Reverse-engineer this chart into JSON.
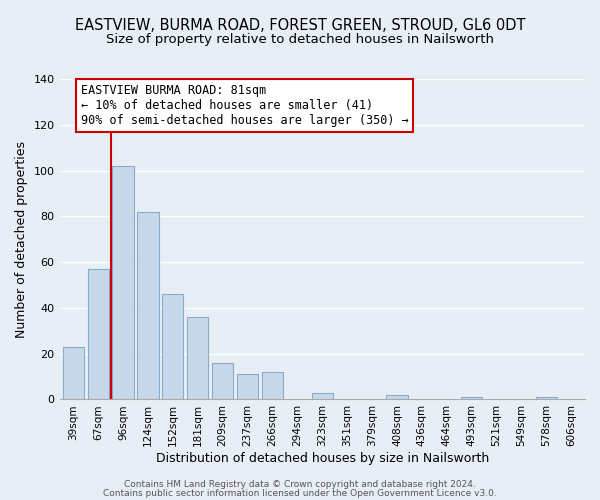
{
  "title": "EASTVIEW, BURMA ROAD, FOREST GREEN, STROUD, GL6 0DT",
  "subtitle": "Size of property relative to detached houses in Nailsworth",
  "xlabel": "Distribution of detached houses by size in Nailsworth",
  "ylabel": "Number of detached properties",
  "bar_labels": [
    "39sqm",
    "67sqm",
    "96sqm",
    "124sqm",
    "152sqm",
    "181sqm",
    "209sqm",
    "237sqm",
    "266sqm",
    "294sqm",
    "323sqm",
    "351sqm",
    "379sqm",
    "408sqm",
    "436sqm",
    "464sqm",
    "493sqm",
    "521sqm",
    "549sqm",
    "578sqm",
    "606sqm"
  ],
  "bar_values": [
    23,
    57,
    102,
    82,
    46,
    36,
    16,
    11,
    12,
    0,
    3,
    0,
    0,
    2,
    0,
    0,
    1,
    0,
    0,
    1,
    0
  ],
  "bar_color": "#c8d8eb",
  "bar_edge_color": "#8aaac8",
  "vline_x": 1.5,
  "vline_color": "#cc0000",
  "ylim": [
    0,
    140
  ],
  "yticks": [
    0,
    20,
    40,
    60,
    80,
    100,
    120,
    140
  ],
  "annotation_title": "EASTVIEW BURMA ROAD: 81sqm",
  "annotation_line1": "← 10% of detached houses are smaller (41)",
  "annotation_line2": "90% of semi-detached houses are larger (350) →",
  "annotation_box_color": "#ffffff",
  "annotation_box_edge": "#cc0000",
  "footer_line1": "Contains HM Land Registry data © Crown copyright and database right 2024.",
  "footer_line2": "Contains public sector information licensed under the Open Government Licence v3.0.",
  "background_color": "#e8eef5",
  "grid_color": "#ffffff",
  "title_fontsize": 10.5,
  "subtitle_fontsize": 9.5,
  "tick_label_fontsize": 7.5,
  "axis_label_fontsize": 9
}
